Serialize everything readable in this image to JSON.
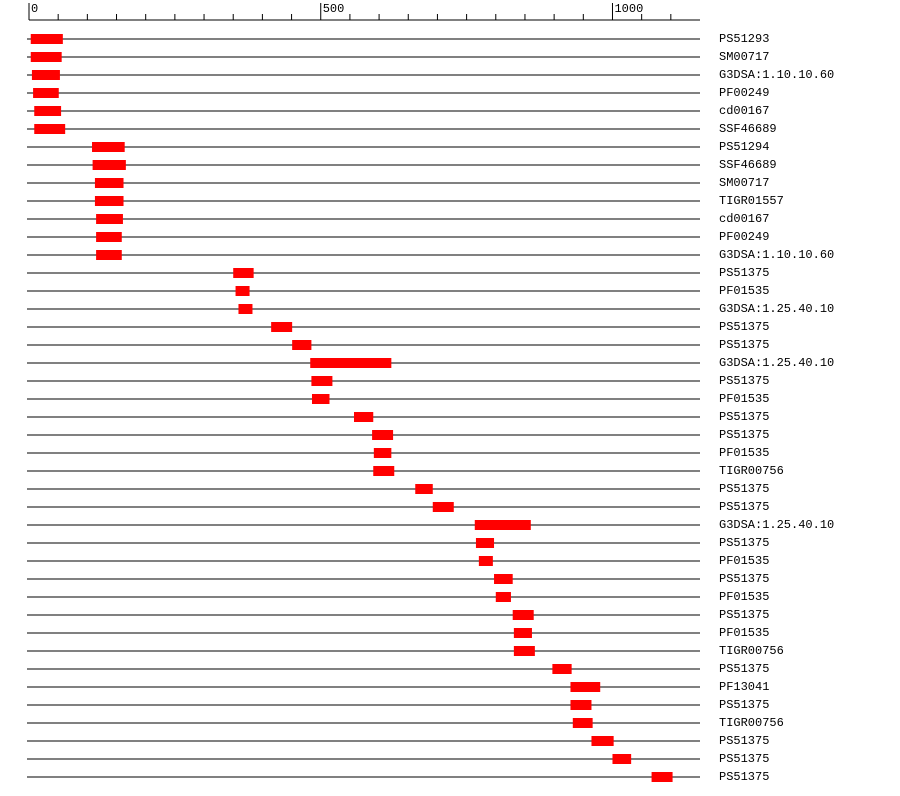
{
  "chart_data": {
    "type": "range",
    "color": "#ff0000",
    "xlim": [
      0,
      1150
    ],
    "xticks": [
      0,
      500,
      1000
    ],
    "xminor": [
      50,
      100,
      150,
      200,
      250,
      300,
      350,
      400,
      450,
      550,
      600,
      650,
      700,
      750,
      800,
      850,
      900,
      950,
      1050,
      1100
    ],
    "categories": [
      "PS51293",
      "SM00717",
      "G3DSA:1.10.10.60",
      "PF00249",
      "cd00167",
      "SSF46689",
      "PS51294",
      "SSF46689",
      "SM00717",
      "TIGR01557",
      "cd00167",
      "PF00249",
      "G3DSA:1.10.10.60",
      "PS51375",
      "PF01535",
      "G3DSA:1.25.40.10",
      "PS51375",
      "PS51375",
      "G3DSA:1.25.40.10",
      "PS51375",
      "PF01535",
      "PS51375",
      "PS51375",
      "PF01535",
      "TIGR00756",
      "PS51375",
      "PS51375",
      "G3DSA:1.25.40.10",
      "PS51375",
      "PF01535",
      "PS51375",
      "PF01535",
      "PS51375",
      "PF01535",
      "TIGR00756",
      "PS51375",
      "PF13041",
      "PS51375",
      "TIGR00756",
      "PS51375",
      "PS51375",
      "PS51375"
    ],
    "starts": [
      3,
      3,
      5,
      7,
      9,
      9,
      108,
      109,
      113,
      113,
      115,
      115,
      115,
      350,
      354,
      359,
      415,
      451,
      482,
      484,
      485,
      557,
      588,
      591,
      590,
      662,
      692,
      764,
      766,
      771,
      797,
      800,
      829,
      831,
      831,
      897,
      928,
      928,
      932,
      964,
      1000,
      1067
    ],
    "ends": [
      58,
      56,
      53,
      51,
      55,
      62,
      164,
      166,
      162,
      162,
      161,
      159,
      159,
      385,
      378,
      383,
      451,
      484,
      621,
      520,
      515,
      590,
      624,
      621,
      626,
      692,
      728,
      860,
      797,
      795,
      829,
      826,
      865,
      862,
      867,
      930,
      979,
      964,
      966,
      1002,
      1032,
      1103
    ]
  }
}
